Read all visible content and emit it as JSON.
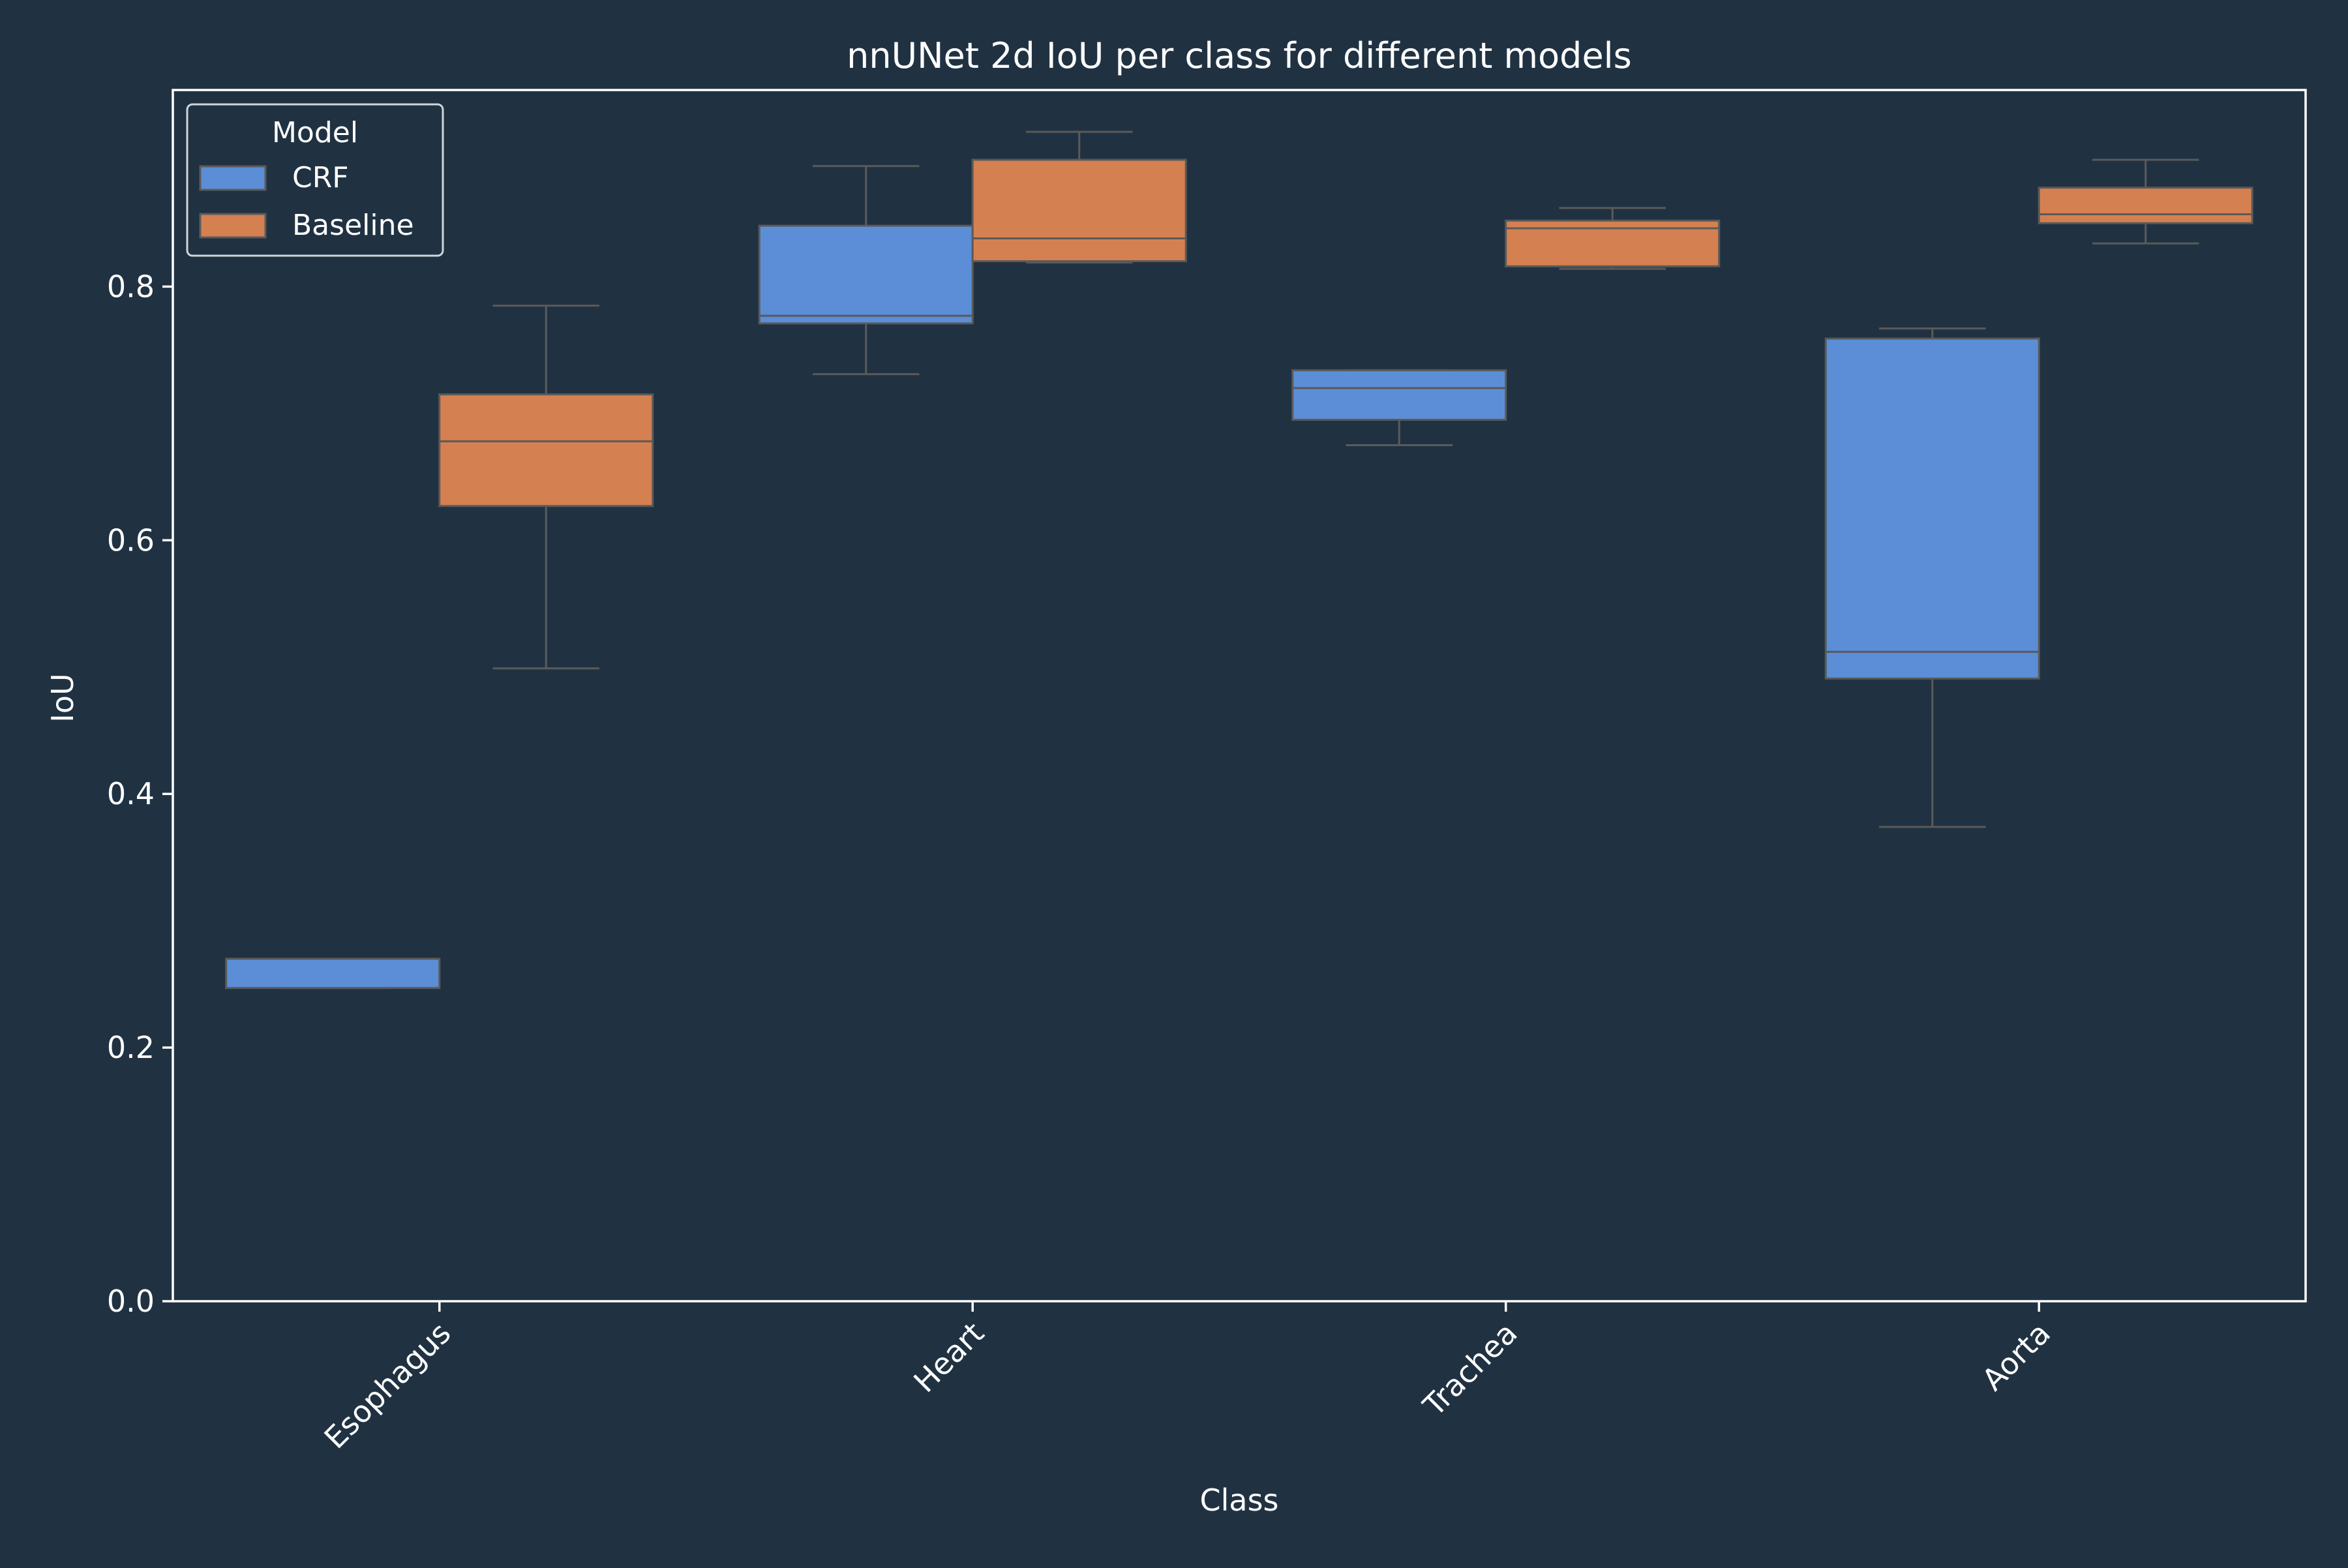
{
  "chart_data": {
    "type": "box",
    "title": "nnUNet 2d IoU per class for different models",
    "xlabel": "Class",
    "ylabel": "IoU",
    "ylim": [
      0,
      0.955
    ],
    "yticks": [
      0.0,
      0.2,
      0.4,
      0.6,
      0.8
    ],
    "yticklabels": [
      "0.0",
      "0.2",
      "0.4",
      "0.6",
      "0.8"
    ],
    "categories": [
      "Esophagus",
      "Heart",
      "Trachea",
      "Aorta"
    ],
    "legend": {
      "title": "Model",
      "position": "top-left"
    },
    "colors": {
      "background": "#203242",
      "axis": "#ffffff",
      "whisker": "#5a5a5a",
      "CRF": "#5b8ed6",
      "Baseline": "#d58050"
    },
    "series": [
      {
        "name": "CRF",
        "color": "#5b8ed6",
        "boxes": [
          {
            "category": "Esophagus",
            "min": 0.247,
            "q1": 0.247,
            "median": 0.27,
            "q3": 0.27,
            "max": 0.27
          },
          {
            "category": "Heart",
            "min": 0.731,
            "q1": 0.771,
            "median": 0.777,
            "q3": 0.848,
            "max": 0.895
          },
          {
            "category": "Trachea",
            "min": 0.675,
            "q1": 0.695,
            "median": 0.72,
            "q3": 0.734,
            "max": 0.734
          },
          {
            "category": "Aorta",
            "min": 0.374,
            "q1": 0.491,
            "median": 0.512,
            "q3": 0.759,
            "max": 0.767
          }
        ]
      },
      {
        "name": "Baseline",
        "color": "#d58050",
        "boxes": [
          {
            "category": "Esophagus",
            "min": 0.499,
            "q1": 0.627,
            "median": 0.678,
            "q3": 0.715,
            "max": 0.785
          },
          {
            "category": "Heart",
            "min": 0.819,
            "q1": 0.82,
            "median": 0.838,
            "q3": 0.9,
            "max": 0.922
          },
          {
            "category": "Trachea",
            "min": 0.814,
            "q1": 0.816,
            "median": 0.846,
            "q3": 0.852,
            "max": 0.862
          },
          {
            "category": "Aorta",
            "min": 0.834,
            "q1": 0.85,
            "median": 0.857,
            "q3": 0.878,
            "max": 0.9
          }
        ]
      }
    ]
  }
}
